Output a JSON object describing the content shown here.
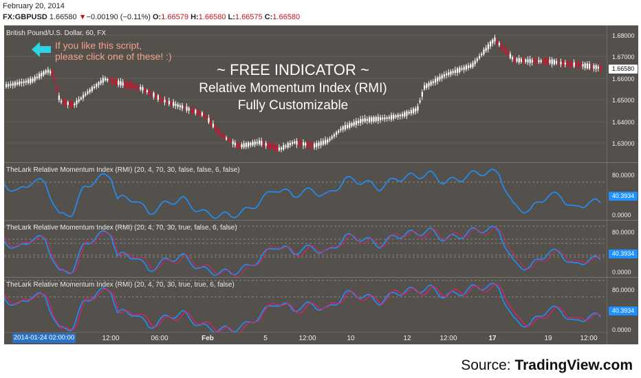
{
  "header": {
    "date": "February 20, 2014",
    "symbol": "FX:GBPUSD",
    "last": "1.66580",
    "change_arrow": "▼",
    "change": "−0.00190 (−0.11%)",
    "o_label": "O:",
    "open": "1.66579",
    "h_label": "H:",
    "high": "1.66580",
    "l_label": "L:",
    "low": "1.66575",
    "c_label": "C:",
    "close": "1.66580"
  },
  "chart": {
    "title": "British Pound/U.S. Dollar, 60, FX",
    "note_line1": "If you like this script,",
    "note_line2": "please click one of these! :)",
    "overlay_line1": "~ FREE INDICATOR ~",
    "overlay_line2": "Relative Momentum Index (RMI)",
    "overlay_line3": "Fully Customizable",
    "price_ticks": [
      "1.68000",
      "1.67000",
      "1.66000",
      "1.65000",
      "1.64000",
      "1.63000"
    ],
    "price_label": "1.66580",
    "indicator_panes": [
      {
        "title": "TheLark Relative Momentum Index (RMI) (20, 4, 70, 30, false, false, 6, false)",
        "tick_high": "80.0000",
        "tick_low": "0.0000",
        "value": "40.3934"
      },
      {
        "title": "TheLark Relative Momentum Index (RMI) (20, 4, 70, 30, true, false, 6, false)",
        "tick_high": "80.0000",
        "tick_low": "0.0000",
        "value": "40.3934"
      },
      {
        "title": "TheLark Relative Momentum Index (RMI) (20, 4, 70, 30, true, true, 6, false)",
        "tick_high": "80.0000",
        "tick_low": "0.0000",
        "value": "40.3934"
      }
    ],
    "x_selected": "2014-01-24 02:00:00",
    "x_ticks": [
      "12:00",
      "06:00",
      "Feb",
      "5",
      "12:00",
      "10",
      "12",
      "12:00",
      "17",
      "19",
      "12:00"
    ],
    "colors": {
      "background": "#54504b",
      "up": "#ffffff",
      "down": "#d8102a",
      "rmi": "#1e90ff",
      "rmi_alt": "#e0206a",
      "label": "#1e90ff"
    }
  },
  "source": {
    "prefix": "Source: ",
    "name": "TradingView.com"
  },
  "icons": {
    "arrow": "left-arrow-icon",
    "change": "down-triangle-icon"
  }
}
